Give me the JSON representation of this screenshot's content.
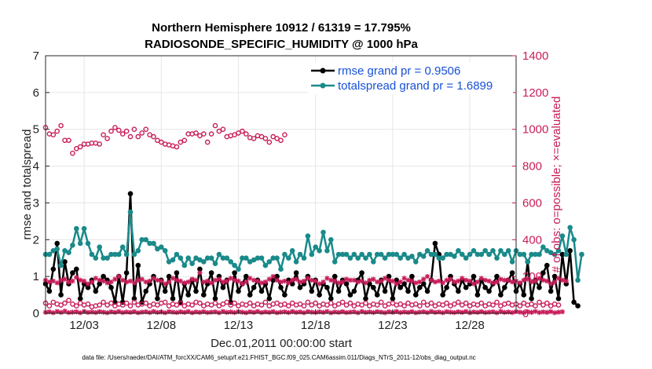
{
  "chart_data": {
    "type": "line",
    "title": "Northern Hemisphere 10912 / 61319 = 17.795%",
    "subtitle": "RADIOSONDE_SPECIFIC_HUMIDITY @ 1000 hPa",
    "xlabel": "Dec.01,2011 00:00:00 start",
    "ylabel": "rmse and totalspread",
    "ylabel_right": "# of obs: o=possible; ×=evaluated",
    "footer": "data file: /Users/raeder/DAI/ATM_forcXX/CAM6_setup/f.e21.FHIST_BGC.f09_025.CAM6assim.011/Diags_NTrS_2011-12/obs_diag_output.nc",
    "x_range": [
      0.0,
      30.5
    ],
    "x_ticks": [
      {
        "x": 2.5,
        "label": "12/03"
      },
      {
        "x": 7.5,
        "label": "12/08"
      },
      {
        "x": 12.5,
        "label": "12/13"
      },
      {
        "x": 17.5,
        "label": "12/18"
      },
      {
        "x": 22.5,
        "label": "12/23"
      },
      {
        "x": 27.5,
        "label": "12/28"
      }
    ],
    "ylim": [
      0,
      7
    ],
    "y_ticks": [
      "0",
      "1",
      "2",
      "3",
      "4",
      "5",
      "6",
      "7"
    ],
    "ylim_right": [
      0,
      1400
    ],
    "y_ticks_right": [
      "0",
      "200",
      "400",
      "600",
      "800",
      "1000",
      "1200",
      "1400"
    ],
    "legend": {
      "position": "top-right",
      "entries": [
        {
          "label": "rmse grand pr = 0.9506",
          "color": "#000000"
        },
        {
          "label": "totalspread grand pr = 1.6899",
          "color": "#1a8a8a"
        }
      ]
    },
    "series": [
      {
        "name": "rmse",
        "axis": "left",
        "color": "#000000",
        "x_start": 0.0,
        "x_step": 0.25,
        "values": [
          0.8,
          0.6,
          1.2,
          1.9,
          0.5,
          1.4,
          0.8,
          1.1,
          1.2,
          0.4,
          0.8,
          0.7,
          0.9,
          0.6,
          0.8,
          1.0,
          0.9,
          0.7,
          0.3,
          1.0,
          0.3,
          1.1,
          3.25,
          0.4,
          1.3,
          0.3,
          0.6,
          0.8,
          1.0,
          0.4,
          0.9,
          0.6,
          1.0,
          0.4,
          1.1,
          0.3,
          0.8,
          0.5,
          0.9,
          0.6,
          1.2,
          0.5,
          0.8,
          1.1,
          0.4,
          1.0,
          0.7,
          0.9,
          0.3,
          1.1,
          0.6,
          0.8,
          1.0,
          0.5,
          0.7,
          0.9,
          0.6,
          0.8,
          0.4,
          0.9,
          1.0,
          0.7,
          0.5,
          0.9,
          0.8,
          1.1,
          0.7,
          0.8,
          1.0,
          0.6,
          0.9,
          0.5,
          0.8,
          0.7,
          0.4,
          1.0,
          0.6,
          0.9,
          0.8,
          0.5,
          0.6,
          0.9,
          1.1,
          0.4,
          0.8,
          0.7,
          0.5,
          0.9,
          0.6,
          1.0,
          0.4,
          0.9,
          0.7,
          0.8,
          0.6,
          1.0,
          0.5,
          0.7,
          0.8,
          0.6,
          0.9,
          1.9,
          1.6,
          0.5,
          0.7,
          1.0,
          0.8,
          0.6,
          0.9,
          0.7,
          0.8,
          1.0,
          0.5,
          0.9,
          0.7,
          0.6,
          0.8,
          1.0,
          0.5,
          0.7,
          0.9,
          1.1,
          0.6,
          0.8,
          0.5,
          1.4,
          0.4,
          0.9,
          0.7,
          1.1,
          1.3,
          0.6,
          1.0,
          0.4,
          1.6,
          0.8,
          1.7,
          0.3,
          0.2
        ]
      },
      {
        "name": "totalspread",
        "axis": "left",
        "color": "#1a8a8a",
        "x_start": 0.0,
        "x_step": 0.25,
        "values": [
          1.6,
          1.6,
          1.7,
          1.75,
          1.3,
          1.7,
          1.65,
          1.85,
          2.3,
          1.9,
          2.3,
          1.9,
          1.6,
          1.5,
          1.8,
          1.5,
          1.5,
          1.6,
          1.6,
          1.6,
          1.8,
          1.6,
          2.75,
          1.6,
          1.7,
          2.0,
          2.0,
          1.9,
          1.9,
          1.75,
          1.8,
          1.7,
          1.4,
          1.45,
          1.6,
          1.5,
          1.3,
          1.5,
          1.35,
          1.5,
          1.45,
          1.4,
          1.5,
          1.5,
          1.35,
          1.6,
          1.5,
          1.5,
          1.4,
          1.3,
          1.2,
          1.5,
          1.5,
          1.4,
          1.45,
          1.5,
          1.5,
          1.3,
          1.4,
          1.5,
          1.5,
          1.2,
          1.6,
          1.5,
          1.7,
          1.4,
          1.6,
          1.5,
          2.1,
          1.6,
          1.8,
          1.7,
          2.2,
          1.7,
          2.0,
          1.4,
          1.6,
          1.6,
          1.6,
          1.5,
          1.6,
          1.5,
          1.6,
          1.5,
          1.6,
          1.4,
          1.6,
          1.6,
          1.5,
          1.6,
          1.6,
          1.6,
          1.5,
          1.6,
          1.5,
          1.55,
          1.4,
          1.6,
          1.55,
          1.7,
          1.6,
          1.6,
          1.5,
          1.5,
          1.6,
          1.6,
          1.55,
          1.7,
          1.6,
          1.5,
          1.6,
          1.7,
          1.6,
          1.6,
          1.7,
          1.6,
          1.7,
          1.5,
          1.7,
          1.6,
          1.7,
          1.4,
          1.7,
          1.6,
          1.6,
          1.4,
          1.6,
          1.6,
          1.6,
          1.8,
          1.7,
          1.65,
          1.6,
          1.7,
          2.1,
          1.6,
          2.33,
          2.0,
          0.9,
          1.6
        ]
      },
      {
        "name": "obs possible",
        "axis": "right",
        "color": "#c81d5a",
        "marker": "circle",
        "x_start": 0.0,
        "x_step": 0.25,
        "values": [
          1010,
          975,
          970,
          990,
          1020,
          940,
          940,
          870,
          895,
          905,
          920,
          920,
          925,
          925,
          920,
          970,
          950,
          990,
          1010,
          995,
          975,
          990,
          960,
          1000,
          960,
          980,
          1000,
          970,
          960,
          940,
          930,
          920,
          915,
          910,
          905,
          930,
          940,
          975,
          975,
          980,
          965,
          975,
          930,
          975,
          1020,
          990,
          1000,
          960,
          965,
          970,
          980,
          990,
          975,
          955,
          950,
          965,
          960,
          950,
          930,
          960,
          950,
          940,
          970
        ]
      },
      {
        "name": "obs possible low",
        "axis": "right",
        "color": "#c81d5a",
        "marker": "circle",
        "x_start": 0.0,
        "x_step": 0.25,
        "values": [
          55,
          40,
          60,
          50,
          45,
          55,
          70,
          50,
          40,
          55,
          45,
          50,
          35,
          40,
          45,
          60,
          45,
          55,
          40,
          50,
          45,
          55,
          40,
          60,
          45,
          50,
          55,
          40,
          50,
          45,
          55,
          60,
          40,
          50,
          45,
          55,
          40,
          50,
          45,
          60,
          55,
          40,
          50,
          45,
          55,
          40,
          50,
          60,
          45,
          55,
          40,
          50,
          45,
          55,
          40,
          50,
          45,
          60,
          40,
          50,
          55,
          45,
          50,
          40,
          55,
          45,
          50,
          40,
          60,
          45,
          55,
          40,
          50,
          45,
          55,
          40,
          50,
          60,
          45,
          55,
          40,
          50,
          45,
          55,
          40,
          50,
          45,
          60,
          40,
          50,
          55,
          45,
          50,
          40,
          55,
          45,
          50,
          40,
          60,
          45,
          55,
          40,
          50,
          45,
          55,
          40,
          50,
          60,
          45,
          55,
          40,
          50,
          45,
          55,
          40,
          50,
          45,
          60,
          40,
          50,
          55,
          45,
          50,
          40,
          55,
          45,
          50,
          40,
          60,
          45,
          55,
          40,
          50,
          45
        ]
      },
      {
        "name": "obs evaluated",
        "axis": "right",
        "color": "#c81d5a",
        "marker": "star",
        "x_start": 0.0,
        "x_step": 0.25,
        "values": [
          180,
          170,
          175,
          165,
          180,
          185,
          170,
          175,
          195,
          180,
          175,
          160,
          170,
          190,
          180,
          175,
          165,
          170,
          185,
          200,
          180,
          170,
          175,
          165,
          180,
          185,
          170,
          175,
          190,
          180,
          175,
          160,
          170,
          190,
          180,
          175,
          165,
          170,
          185,
          180,
          220,
          170,
          175,
          165,
          180,
          185,
          170,
          175,
          190,
          180,
          175,
          160,
          170,
          190,
          180,
          175,
          165,
          170,
          185,
          200,
          180,
          170,
          175,
          165,
          180,
          185,
          170,
          175,
          190,
          180,
          175,
          160,
          170,
          190,
          180,
          175,
          165,
          170,
          185,
          180,
          180,
          170,
          175,
          165,
          180,
          185,
          170,
          175,
          190,
          180,
          175,
          160,
          170,
          190,
          180,
          175,
          165,
          170,
          185,
          200,
          180,
          170,
          175,
          165,
          180,
          185,
          170,
          175,
          190,
          180,
          175,
          160,
          170,
          190,
          180,
          175,
          165,
          170,
          185,
          180,
          180,
          170,
          175,
          165,
          180,
          185,
          170,
          175,
          190,
          180,
          175,
          160,
          170,
          190,
          180,
          175
        ]
      },
      {
        "name": "obs evaluated low",
        "axis": "right",
        "color": "#c81d5a",
        "marker": "star",
        "x_start": 0.0,
        "x_step": 0.25,
        "values": [
          5,
          8,
          3,
          10,
          5,
          12,
          4,
          6,
          8,
          3,
          10,
          5,
          7,
          4,
          9,
          6,
          3,
          8,
          5,
          10,
          4,
          7,
          5,
          9,
          3,
          6,
          8,
          4,
          10,
          5,
          7,
          3,
          9,
          6,
          4,
          8,
          5,
          10,
          3,
          7,
          5,
          9,
          4,
          6,
          8,
          3,
          10,
          5,
          7,
          4,
          9,
          6,
          3,
          8,
          5,
          10,
          4,
          7,
          5,
          9,
          3,
          6,
          8,
          4,
          10,
          5,
          7,
          3,
          9,
          6,
          4,
          8,
          5,
          10,
          3,
          7,
          5,
          9,
          4,
          6,
          8,
          3,
          10,
          5,
          7,
          4,
          9,
          6,
          3,
          8,
          5,
          10,
          4,
          7,
          5,
          9,
          3,
          6,
          8,
          4,
          10,
          5,
          7,
          3,
          9,
          6,
          4,
          8,
          5,
          10,
          3,
          7,
          5,
          9,
          4,
          6,
          8,
          3,
          10,
          5,
          7,
          4,
          9,
          6,
          3,
          8,
          5,
          10,
          4,
          7,
          5,
          9,
          3,
          6,
          8
        ]
      }
    ]
  }
}
